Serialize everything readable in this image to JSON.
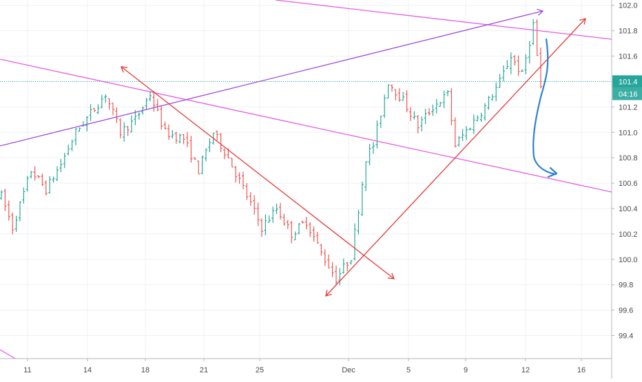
{
  "chart_data": {
    "type": "ohlc",
    "title": "",
    "grid": true,
    "ylim": [
      99.3,
      102.02
    ],
    "y_ticks": [
      "102.0",
      "101.8",
      "101.6",
      "101.4",
      "101.2",
      "101.0",
      "100.8",
      "100.6",
      "100.4",
      "100.2",
      "100.0",
      "99.8",
      "99.6",
      "99.4"
    ],
    "x_ticks": [
      "11",
      "14",
      "18",
      "21",
      "25",
      "Dec",
      "5",
      "9",
      "12",
      "16"
    ],
    "current_price": {
      "label": "101.4",
      "value": 101.4
    },
    "countdown": {
      "label": "04:16"
    },
    "colors": {
      "up": "#26a69a",
      "down": "#ef5350",
      "grid": "#eef0f3",
      "axis": "#b2b5be",
      "magenta": "#e55be5",
      "purple": "#9c4dde",
      "red": "#e53935",
      "blue": "#2f7fd1",
      "price_line": "#26a69a"
    },
    "anchor_closes": [
      [
        0,
        100.5
      ],
      [
        3,
        100.25
      ],
      [
        8,
        100.7
      ],
      [
        12,
        100.55
      ],
      [
        16,
        100.75
      ],
      [
        20,
        101.0
      ],
      [
        24,
        101.15
      ],
      [
        28,
        101.3
      ],
      [
        32,
        101.0
      ],
      [
        36,
        101.1
      ],
      [
        40,
        101.3
      ],
      [
        44,
        101.0
      ],
      [
        49,
        100.95
      ],
      [
        53,
        100.7
      ],
      [
        57,
        101.0
      ],
      [
        61,
        100.8
      ],
      [
        66,
        100.5
      ],
      [
        70,
        100.25
      ],
      [
        74,
        100.4
      ],
      [
        78,
        100.2
      ],
      [
        82,
        100.3
      ],
      [
        86,
        100.05
      ],
      [
        90,
        99.85
      ],
      [
        94,
        100.02
      ],
      [
        96,
        100.4
      ],
      [
        98,
        100.8
      ],
      [
        100,
        100.9
      ],
      [
        102,
        101.15
      ],
      [
        104,
        101.4
      ],
      [
        108,
        101.25
      ],
      [
        112,
        101.05
      ],
      [
        116,
        101.2
      ],
      [
        120,
        101.3
      ],
      [
        122,
        100.9
      ],
      [
        126,
        101.05
      ],
      [
        130,
        101.2
      ],
      [
        134,
        101.4
      ],
      [
        137,
        101.6
      ],
      [
        140,
        101.45
      ],
      [
        143,
        101.85
      ],
      [
        145,
        101.35
      ]
    ],
    "trendlines": [
      {
        "name": "resistance-upper",
        "color": "magenta",
        "points": [
          [
            2014,
            102.02
          ],
          [
            2160,
            101.7
          ]
        ]
      },
      {
        "name": "channel-lower",
        "color": "magenta",
        "points": [
          [
            2004,
            101.56
          ],
          [
            2160,
            100.56
          ]
        ]
      },
      {
        "name": "channel-bottom-corner",
        "color": "magenta",
        "points": [
          [
            2004,
            99.42
          ],
          [
            2010,
            99.3
          ]
        ]
      },
      {
        "name": "rising-purple",
        "color": "purple",
        "points": [
          [
            2004,
            100.91
          ],
          [
            2152,
            101.93
          ]
        ]
      },
      {
        "name": "falling-red",
        "color": "red",
        "points": [
          [
            2038,
            101.51
          ],
          [
            2112,
            99.92
          ]
        ]
      },
      {
        "name": "rising-red",
        "color": "red",
        "points": [
          [
            2094,
            99.78
          ],
          [
            2159,
            101.88
          ]
        ]
      }
    ]
  }
}
